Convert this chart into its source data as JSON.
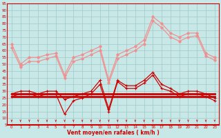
{
  "xlabel": "Vent moyen/en rafales ( km/h )",
  "x": [
    0,
    1,
    2,
    3,
    4,
    5,
    6,
    7,
    8,
    9,
    10,
    11,
    12,
    13,
    14,
    15,
    16,
    17,
    18,
    19,
    20,
    21,
    22,
    23
  ],
  "line_max_rafales": [
    65,
    50,
    55,
    55,
    57,
    58,
    42,
    55,
    57,
    60,
    63,
    38,
    57,
    60,
    63,
    68,
    85,
    80,
    73,
    70,
    73,
    73,
    58,
    55
  ],
  "line_max_moyen": [
    62,
    48,
    52,
    52,
    54,
    56,
    40,
    52,
    54,
    57,
    60,
    36,
    54,
    57,
    60,
    65,
    82,
    77,
    70,
    67,
    70,
    71,
    56,
    53
  ],
  "line_moyen_rafales": [
    28,
    30,
    30,
    28,
    30,
    30,
    24,
    26,
    28,
    30,
    38,
    17,
    38,
    34,
    34,
    38,
    44,
    35,
    32,
    28,
    30,
    30,
    28,
    25
  ],
  "line_moyen_moyen": [
    26,
    28,
    28,
    26,
    28,
    28,
    13,
    23,
    25,
    28,
    35,
    15,
    37,
    32,
    32,
    36,
    42,
    32,
    30,
    26,
    28,
    28,
    26,
    23
  ],
  "line_flat_upper": [
    28,
    28,
    28,
    28,
    28,
    28,
    28,
    28,
    28,
    28,
    28,
    28,
    28,
    28,
    28,
    28,
    28,
    28,
    28,
    28,
    28,
    28,
    28,
    28
  ],
  "line_flat_lower": [
    26,
    26,
    26,
    26,
    26,
    26,
    26,
    26,
    26,
    26,
    26,
    26,
    26,
    26,
    26,
    26,
    26,
    26,
    26,
    26,
    26,
    26,
    26,
    26
  ],
  "ylim": [
    5,
    95
  ],
  "yticks": [
    5,
    10,
    15,
    20,
    25,
    30,
    35,
    40,
    45,
    50,
    55,
    60,
    65,
    70,
    75,
    80,
    85,
    90,
    95
  ],
  "bg_color": "#c8e8e8",
  "grid_color": "#a0c8c8",
  "line_color_light": "#f09090",
  "line_color_dark": "#cc0000",
  "line_color_flat": "#cc0000"
}
